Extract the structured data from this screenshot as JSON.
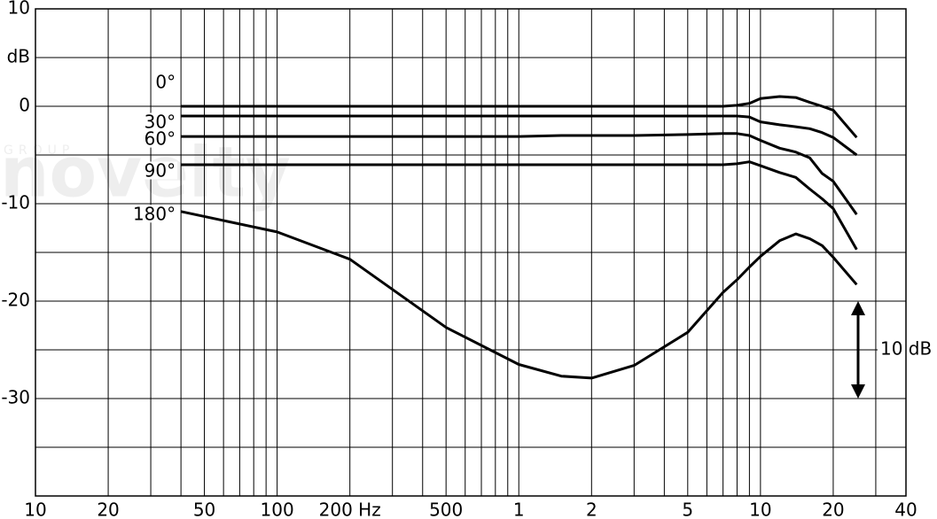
{
  "chart_data": {
    "type": "line",
    "log_x": true,
    "watermark": "novelty",
    "watermark_sub": "GROUP",
    "y_unit": {
      "value": 5,
      "label": "dB"
    },
    "x": [
      40,
      100,
      200,
      500,
      1000,
      1500,
      2000,
      3000,
      5000,
      7000,
      8000,
      9000,
      10000,
      12000,
      14000,
      16000,
      18000,
      20000,
      25000
    ],
    "series": [
      {
        "name": "0°",
        "color": "#000000",
        "values": [
          0,
          0,
          0,
          0,
          0,
          0,
          0,
          0,
          0,
          0,
          0.1,
          0.3,
          0.8,
          1.0,
          0.9,
          0.4,
          0,
          -0.4,
          -3.2
        ]
      },
      {
        "name": "30°",
        "color": "#000000",
        "values": [
          -1,
          -1,
          -1,
          -1,
          -1,
          -1,
          -1,
          -1,
          -1,
          -1,
          -1,
          -1.1,
          -1.6,
          -1.9,
          -2.1,
          -2.3,
          -2.7,
          -3.2,
          -5.0
        ]
      },
      {
        "name": "60°",
        "color": "#000000",
        "values": [
          -3.1,
          -3.1,
          -3.1,
          -3.1,
          -3.1,
          -3.0,
          -3.0,
          -3.0,
          -2.9,
          -2.8,
          -2.8,
          -3.0,
          -3.5,
          -4.3,
          -4.7,
          -5.3,
          -6.9,
          -7.7,
          -11.1
        ]
      },
      {
        "name": "90°",
        "color": "#000000",
        "values": [
          -6,
          -6,
          -6,
          -6,
          -6,
          -6,
          -6,
          -6,
          -6,
          -6,
          -5.9,
          -5.7,
          -6.1,
          -6.8,
          -7.3,
          -8.5,
          -9.5,
          -10.5,
          -14.7
        ]
      },
      {
        "name": "180°",
        "color": "#000000",
        "values": [
          -10.8,
          -12.9,
          -15.7,
          -22.7,
          -26.5,
          -27.7,
          -27.9,
          -26.6,
          -23.2,
          -19.1,
          -17.8,
          -16.5,
          -15.4,
          -13.8,
          -13.1,
          -13.6,
          -14.3,
          -15.5,
          -18.3
        ]
      }
    ],
    "xlim": [
      10,
      40000
    ],
    "ylim": [
      -40,
      10
    ],
    "xticks": [
      10,
      20,
      50,
      100,
      {
        "value": 200,
        "label": "200 Hz"
      },
      500,
      {
        "value": 1000,
        "label": "1"
      },
      {
        "value": 2000,
        "label": "2"
      },
      {
        "value": 5000,
        "label": "5"
      },
      {
        "value": 10000,
        "label": "10"
      },
      {
        "value": 20000,
        "label": "20"
      },
      {
        "value": 40000,
        "label": "40"
      }
    ],
    "yticks": [
      10,
      0,
      -10,
      -20,
      -30
    ],
    "xgrid": [
      10,
      20,
      30,
      40,
      50,
      60,
      70,
      80,
      90,
      100,
      200,
      300,
      400,
      500,
      600,
      700,
      800,
      900,
      1000,
      2000,
      3000,
      4000,
      5000,
      6000,
      7000,
      8000,
      9000,
      10000,
      20000,
      30000,
      40000
    ],
    "ygrid": [
      10,
      5,
      0,
      -5,
      -10,
      -15,
      -20,
      -25,
      -30,
      -35,
      -40
    ],
    "annotation": {
      "text": "10 dB",
      "from": -20,
      "to": -30
    }
  }
}
